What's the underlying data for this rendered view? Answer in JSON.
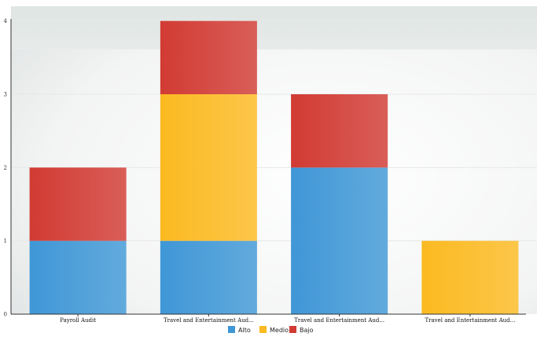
{
  "chart_data": {
    "type": "bar",
    "stacked": true,
    "categories": [
      "Payroll Audit",
      "Travel and Entertainment Aud...",
      "Travel and Entertainment Aud...",
      "Travel and Entertainment Aud..."
    ],
    "series": [
      {
        "name": "Alto",
        "color": "#3f97d6",
        "values": [
          1,
          1,
          2,
          0
        ]
      },
      {
        "name": "Medio",
        "color": "#fbba21",
        "values": [
          0,
          2,
          0,
          1
        ]
      },
      {
        "name": "Bajo",
        "color": "#d13b33",
        "values": [
          1,
          1,
          1,
          0
        ]
      }
    ],
    "y_ticks": [
      "0",
      "1",
      "2",
      "3",
      "4"
    ],
    "ylim": [
      0,
      4.2
    ],
    "legend_position": "bottom-center",
    "grid": true,
    "background": "light gray gradient"
  }
}
